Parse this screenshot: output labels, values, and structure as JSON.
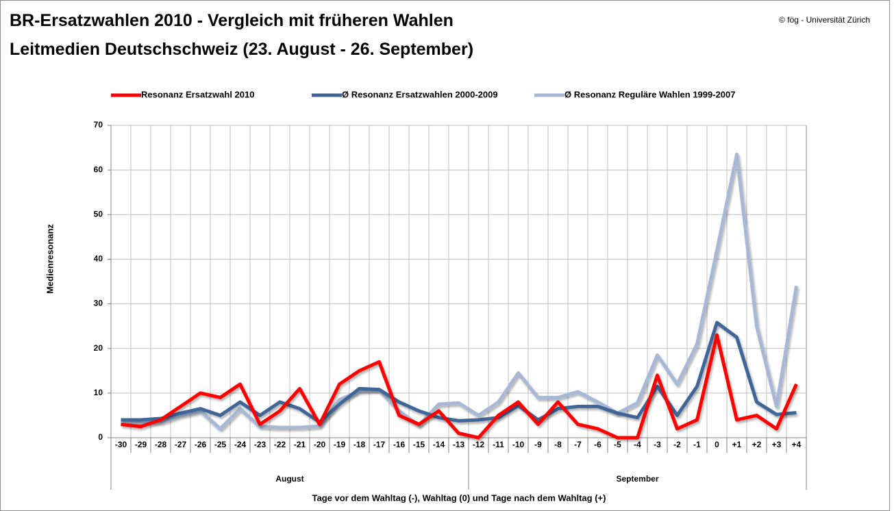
{
  "chart_data": {
    "type": "line",
    "title": "BR-Ersatzwahlen 2010 - Vergleich mit früheren Wahlen",
    "subtitle": "Leitmedien Deutschschweiz (23. August - 26. September)",
    "source": "© fög - Universität Zürich",
    "y_label": "Medienresonanz",
    "x_label": "Tage vor dem Wahltag (-), Wahltag (0) und Tage nach dem Wahltag (+)",
    "categories": [
      "-30",
      "-29",
      "-28",
      "-27",
      "-26",
      "-25",
      "-24",
      "-23",
      "-22",
      "-21",
      "-20",
      "-19",
      "-18",
      "-17",
      "-16",
      "-15",
      "-14",
      "-13",
      "-12",
      "-11",
      "-10",
      "-9",
      "-8",
      "-7",
      "-6",
      "-5",
      "-4",
      "-3",
      "-2",
      "-1",
      "0",
      "+1",
      "+2",
      "+3",
      "+4"
    ],
    "x_groups": [
      {
        "label": "August",
        "from": "-30",
        "to": "-13"
      },
      {
        "label": "September",
        "from": "-12",
        "to": "+4"
      }
    ],
    "series": [
      {
        "name": "Resonanz Ersatzwahl 2010",
        "color": "#ff0000",
        "values": [
          3,
          2.5,
          4,
          7,
          10,
          9,
          12,
          3,
          6,
          11,
          3,
          12,
          15,
          17,
          5,
          3,
          6,
          1,
          0,
          5,
          8,
          3,
          8,
          3,
          2,
          0,
          0,
          14,
          2,
          4,
          23,
          4,
          5,
          2,
          12
        ]
      },
      {
        "name": "Ø Resonanz Ersatzwahlen 2000-2009",
        "color": "#3f6597",
        "values": [
          4,
          4,
          4.3,
          5.5,
          6.5,
          5,
          8,
          5,
          8,
          6.5,
          3.5,
          7.5,
          11,
          10.8,
          8,
          6,
          4.5,
          3.8,
          4,
          4.5,
          7.2,
          4,
          6.5,
          7,
          7,
          5.5,
          4.5,
          11.5,
          5,
          11.5,
          25.8,
          22.5,
          8,
          5.2,
          5.6
        ]
      },
      {
        "name": "Ø Resonanz Reguläre Wahlen 1999-2007",
        "color": "#a7b8d5",
        "values": [
          3.8,
          3.5,
          3.5,
          5,
          6,
          2,
          6.5,
          2.5,
          2.3,
          2.3,
          2.6,
          8.5,
          10.5,
          10.8,
          6,
          2.8,
          7.5,
          7.8,
          5,
          8,
          14.5,
          9,
          9,
          10.3,
          8,
          5.5,
          7.8,
          18.5,
          12,
          21,
          42,
          63.5,
          25,
          7,
          34
        ]
      }
    ],
    "ylim": [
      0,
      70
    ],
    "yticks": [
      0,
      10,
      20,
      30,
      40,
      50,
      60,
      70
    ],
    "grid": true
  }
}
